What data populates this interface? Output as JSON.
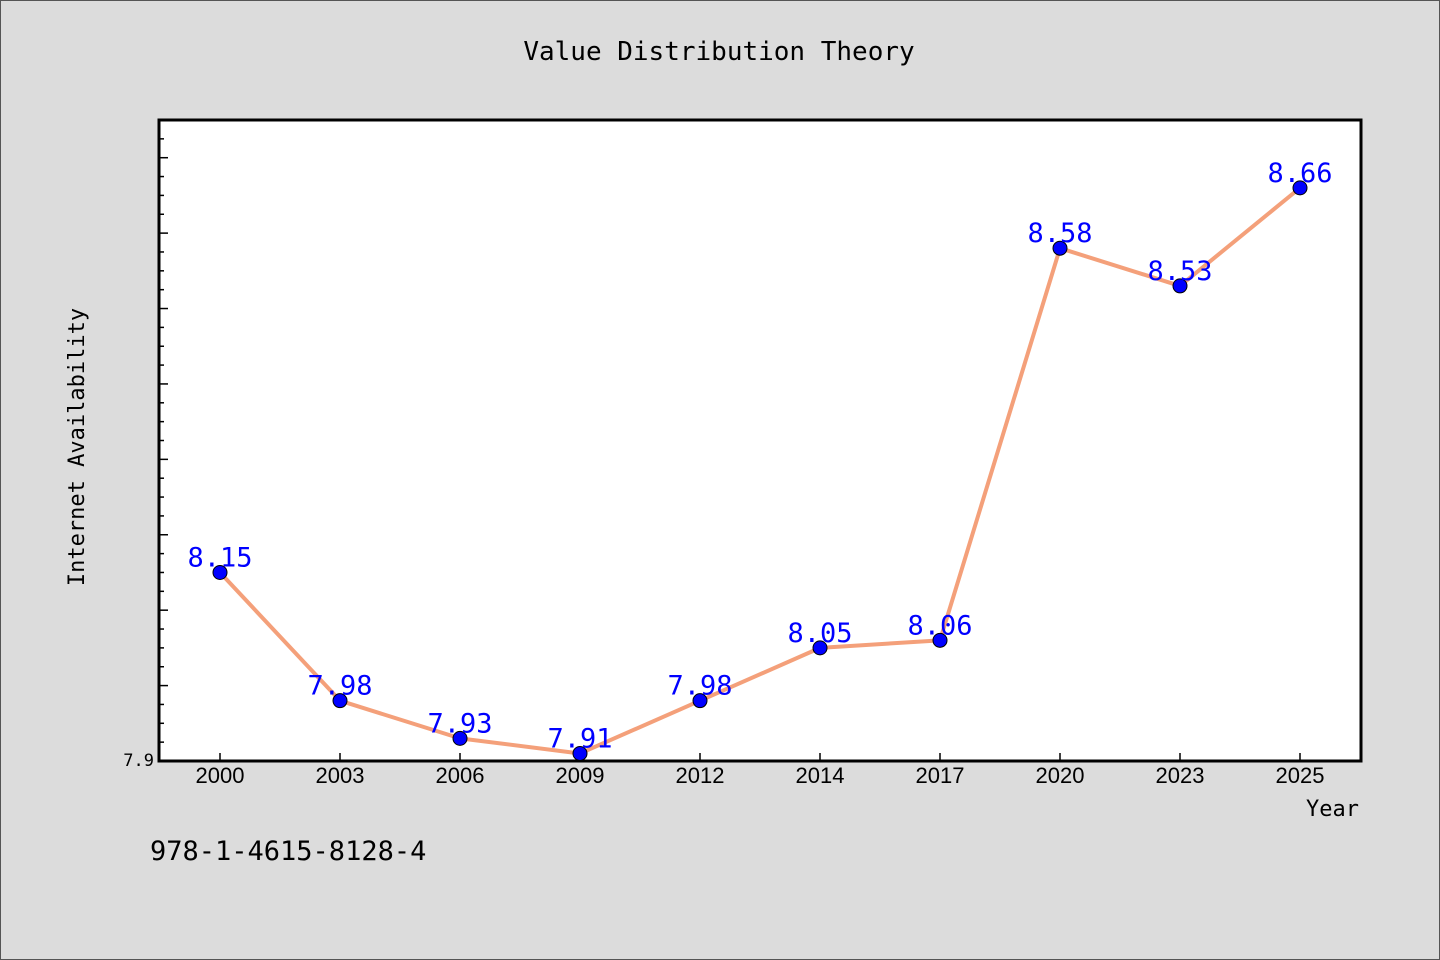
{
  "chart_data": {
    "type": "line",
    "title": "Value Distribution Theory",
    "xlabel": "Year",
    "ylabel": "Internet Availability",
    "categories": [
      "2000",
      "2003",
      "2006",
      "2009",
      "2012",
      "2014",
      "2017",
      "2020",
      "2023",
      "2025"
    ],
    "series": [
      {
        "values": [
          8.15,
          7.98,
          7.93,
          7.91,
          7.98,
          8.05,
          8.06,
          8.58,
          8.53,
          8.66
        ],
        "data_labels": [
          "8.15",
          "7.98",
          "7.93",
          "7.91",
          "7.98",
          "8.05",
          "8.06",
          "8.58",
          "8.53",
          "8.66"
        ],
        "line_color": "#f4a07a",
        "marker_color": "#0000ff"
      }
    ],
    "ylim": [
      7.9,
      8.75
    ],
    "y_tick_labels": [
      "7.9"
    ],
    "grid": false,
    "legend": "none"
  },
  "footer": {
    "isbn": "978-1-4615-8128-4"
  },
  "colors": {
    "background": "#dcdcdc",
    "plot_background": "#ffffff",
    "line": "#f4a07a",
    "marker": "#0000ff",
    "label": "#0000ff"
  }
}
